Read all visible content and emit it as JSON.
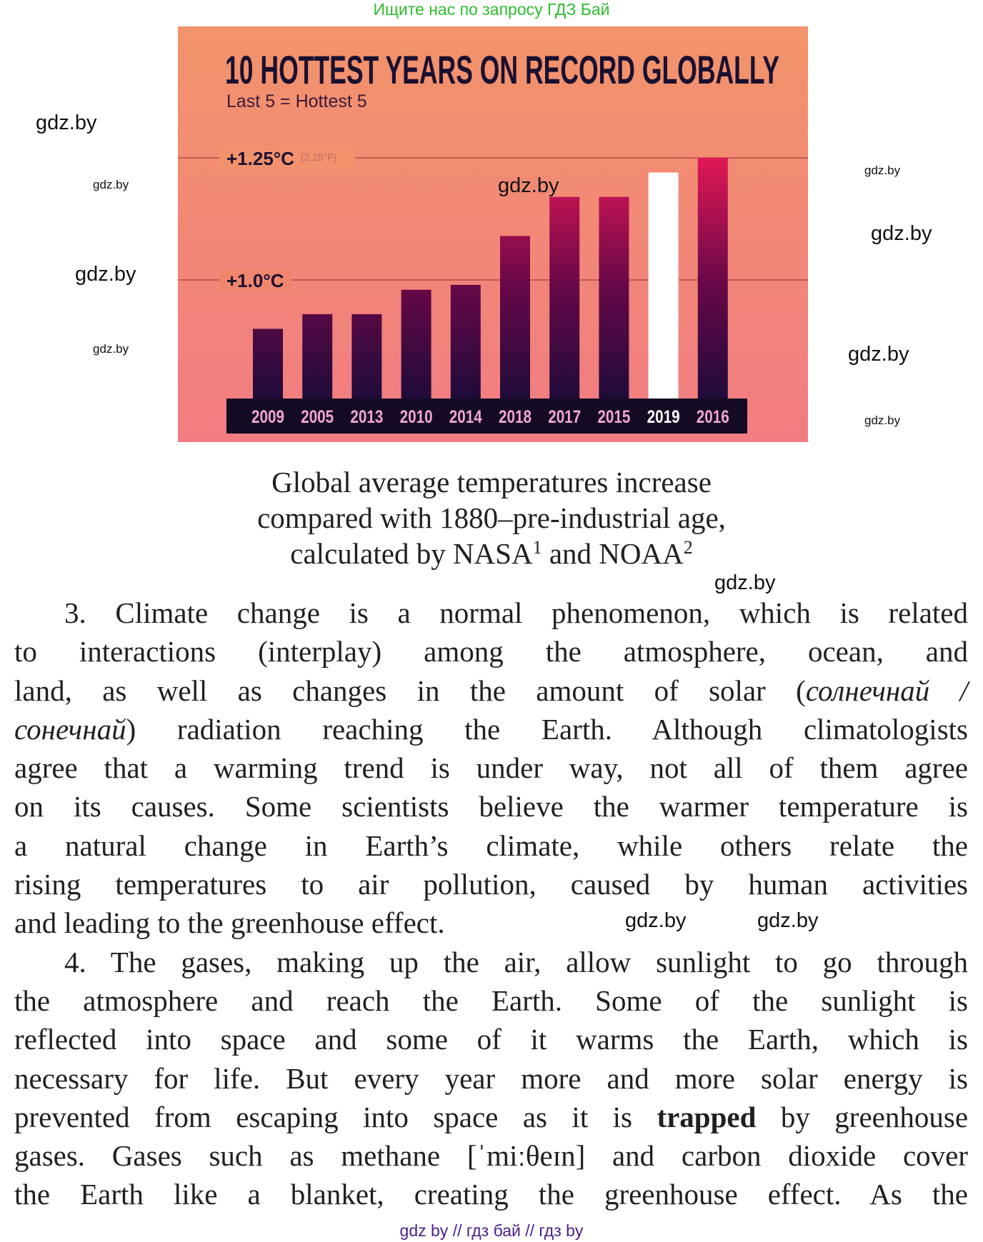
{
  "header_note": "Ищите нас по запросу ГДЗ Бай",
  "footer_note": "gdz by  //  гдз бай  //  гдз by",
  "watermark": "gdz.by",
  "chart_data": {
    "type": "bar",
    "title": "10 HOTTEST YEARS ON RECORD GLOBALLY",
    "subtitle": "Last 5 = Hottest 5",
    "categories": [
      "2009",
      "2005",
      "2013",
      "2010",
      "2014",
      "2018",
      "2017",
      "2015",
      "2019",
      "2016"
    ],
    "values": [
      0.9,
      0.93,
      0.93,
      0.98,
      0.99,
      1.09,
      1.17,
      1.17,
      1.22,
      1.25
    ],
    "unit": "°C",
    "highlight": "2019",
    "gridlines": [
      {
        "value": 1.25,
        "label": "+1.25°C",
        "note": "(2.25°F)"
      },
      {
        "value": 1.0,
        "label": "+1.0°C",
        "note": ""
      }
    ],
    "ylim": [
      0.75,
      1.3
    ],
    "colors": {
      "background_top": "#f2946b",
      "background_bottom": "#f27c82",
      "bar_low": "#1e0b3a",
      "bar_high": "#f11a58",
      "highlight_bar": "#ffffff",
      "title": "#1a1030",
      "label_strip": "#140a24",
      "year_label": "#f2a6cf"
    }
  },
  "caption": {
    "line1": "Global average temperatures increase",
    "line2": "compared with 1880–pre-industrial age,",
    "line3_a": "calculated by NASA",
    "line3_sup1": "1",
    "line3_b": " and NOAA",
    "line3_sup2": "2"
  },
  "body_lines": [
    [
      {
        "t": "3.  Climate change is a normal phenomenon, which is related"
      }
    ],
    [
      {
        "t": "to interactions (interplay) among the atmosphere, ocean, and"
      }
    ],
    [
      {
        "t": "land, as well as changes in the amount of solar ("
      },
      {
        "t": "солнечнай /",
        "s": "i"
      }
    ],
    [
      {
        "t": "сонечнай",
        "s": "i"
      },
      {
        "t": ") radiation reaching the Earth. Although climatologists"
      }
    ],
    [
      {
        "t": "agree that a warming trend is under way, not all of them agree"
      }
    ],
    [
      {
        "t": "on its causes. Some scientists believe the warmer temperature is"
      }
    ],
    [
      {
        "t": "a natural change in Earth’s climate, while others relate the"
      }
    ],
    [
      {
        "t": "rising temperatures to air pollution, caused by human activities"
      }
    ],
    [
      {
        "t": "and leading to the greenhouse effect."
      }
    ],
    [
      {
        "t": "4.  The gases, making up the air, allow sunlight to go through"
      }
    ],
    [
      {
        "t": "the atmosphere and reach the Earth. Some of the sunlight is"
      }
    ],
    [
      {
        "t": "reflected into space and some of it warms the Earth, which is"
      }
    ],
    [
      {
        "t": "necessary for life. But every year more and more solar energy is"
      }
    ],
    [
      {
        "t": "prevented from escaping into space as it is "
      },
      {
        "t": "trapped",
        "s": "b"
      },
      {
        "t": " by greenhouse"
      }
    ],
    [
      {
        "t": "gases. Gases such as methane [ˈmiːθeɪn] and carbon dioxide cover"
      }
    ],
    [
      {
        "t": "the Earth like a blanket, creating the greenhouse effect. As the"
      }
    ]
  ]
}
